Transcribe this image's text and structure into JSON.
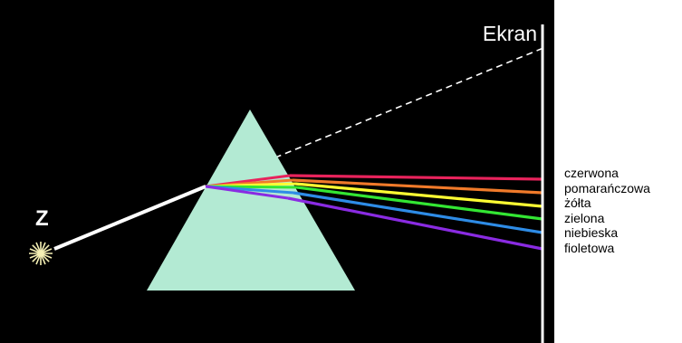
{
  "screen_label": "Ekran",
  "source_label": "Z",
  "colors": [
    {
      "label": "czerwona",
      "color": "#e8235c"
    },
    {
      "label": "pomarańczowa",
      "color": "#f07a2a"
    },
    {
      "label": "żółta",
      "color": "#ffff33"
    },
    {
      "label": "zielona",
      "color": "#33e633"
    },
    {
      "label": "niebieska",
      "color": "#2e8ce6"
    },
    {
      "label": "fioletowa",
      "color": "#8a2be2"
    }
  ],
  "prism_color": "#b3ead3",
  "background_color": "#000000",
  "incident_ray_color": "#ffffff",
  "source_color": "#f5f0b4"
}
